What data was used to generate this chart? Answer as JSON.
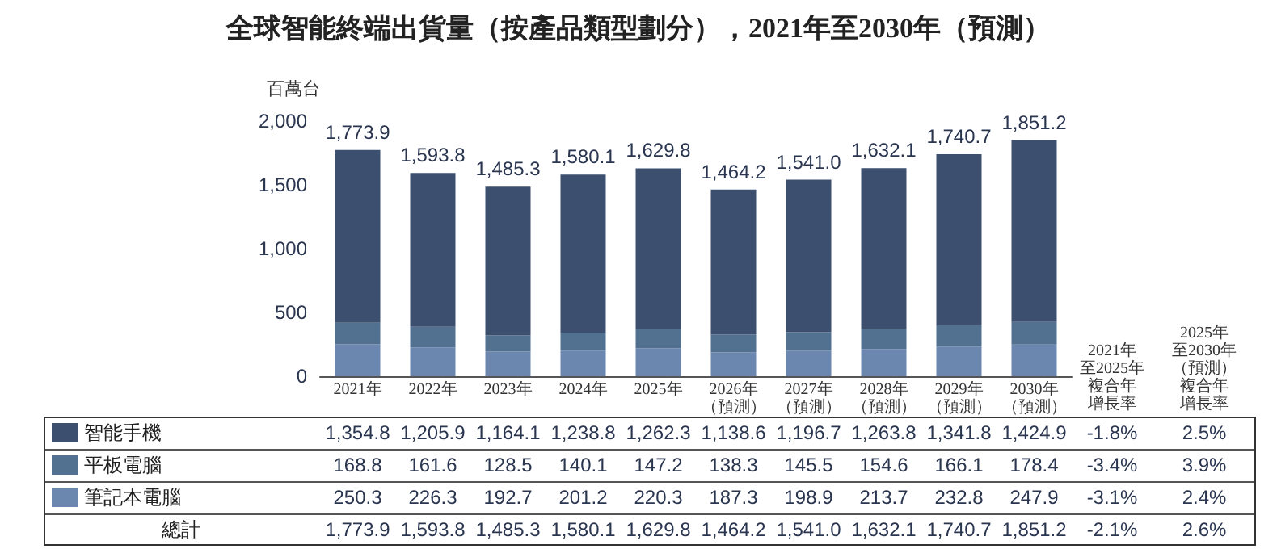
{
  "chart_data": {
    "type": "bar",
    "title": "全球智能終端出貨量（按產品類型劃分），2021年至2030年（預測）",
    "ylabel": "百萬台",
    "categories": [
      "2021年",
      "2022年",
      "2023年",
      "2024年",
      "2025年",
      "2026年（預測）",
      "2027年（預測）",
      "2028年（預測）",
      "2029年（預測）",
      "2030年（預測）"
    ],
    "stacked": true,
    "series": [
      {
        "name": "筆記本電腦",
        "color": "#6b87b0",
        "values": [
          250.3,
          226.3,
          192.7,
          201.2,
          220.3,
          187.3,
          198.9,
          213.7,
          232.8,
          247.9
        ],
        "value_labels": [
          "250.3",
          "226.3",
          "192.7",
          "201.2",
          "220.3",
          "187.3",
          "198.9",
          "213.7",
          "232.8",
          "247.9"
        ]
      },
      {
        "name": "平板電腦",
        "color": "#52708f",
        "values": [
          168.8,
          161.6,
          128.5,
          140.1,
          147.2,
          138.3,
          145.5,
          154.6,
          166.1,
          178.4
        ],
        "value_labels": [
          "168.8",
          "161.6",
          "128.5",
          "140.1",
          "147.2",
          "138.3",
          "145.5",
          "154.6",
          "166.1",
          "178.4"
        ]
      },
      {
        "name": "智能手機",
        "color": "#3d4f6e",
        "values": [
          1354.8,
          1205.9,
          1164.1,
          1238.8,
          1262.3,
          1138.6,
          1196.7,
          1263.8,
          1341.8,
          1424.9
        ],
        "value_labels": [
          "1,354.8",
          "1,205.9",
          "1,164.1",
          "1,238.8",
          "1,262.3",
          "1,138.6",
          "1,196.7",
          "1,263.8",
          "1,341.8",
          "1,424.9"
        ]
      }
    ],
    "totals": [
      "1,773.9",
      "1,593.8",
      "1,485.3",
      "1,580.1",
      "1,629.8",
      "1,464.2",
      "1,541.0",
      "1,632.1",
      "1,740.7",
      "1,851.2"
    ],
    "ylim": [
      0,
      2000
    ],
    "yticks": [
      0,
      500,
      {
        "value": 1000,
        "label": "1,000"
      },
      {
        "value": 1500,
        "label": "1,500"
      },
      {
        "value": 2000,
        "label": "2,000"
      }
    ],
    "grid": false,
    "legend": "bottom",
    "annotations": [
      "總計",
      "2021年",
      "至2025年",
      "複合年",
      "增長率",
      "2025年",
      "至2030年",
      "（預測）",
      "複合年",
      "增長率",
      "-3.1%",
      "2.4%",
      "-3.4%",
      "3.9%",
      "-1.8%",
      "2.5%",
      "-2.1%",
      "2.6%"
    ]
  }
}
